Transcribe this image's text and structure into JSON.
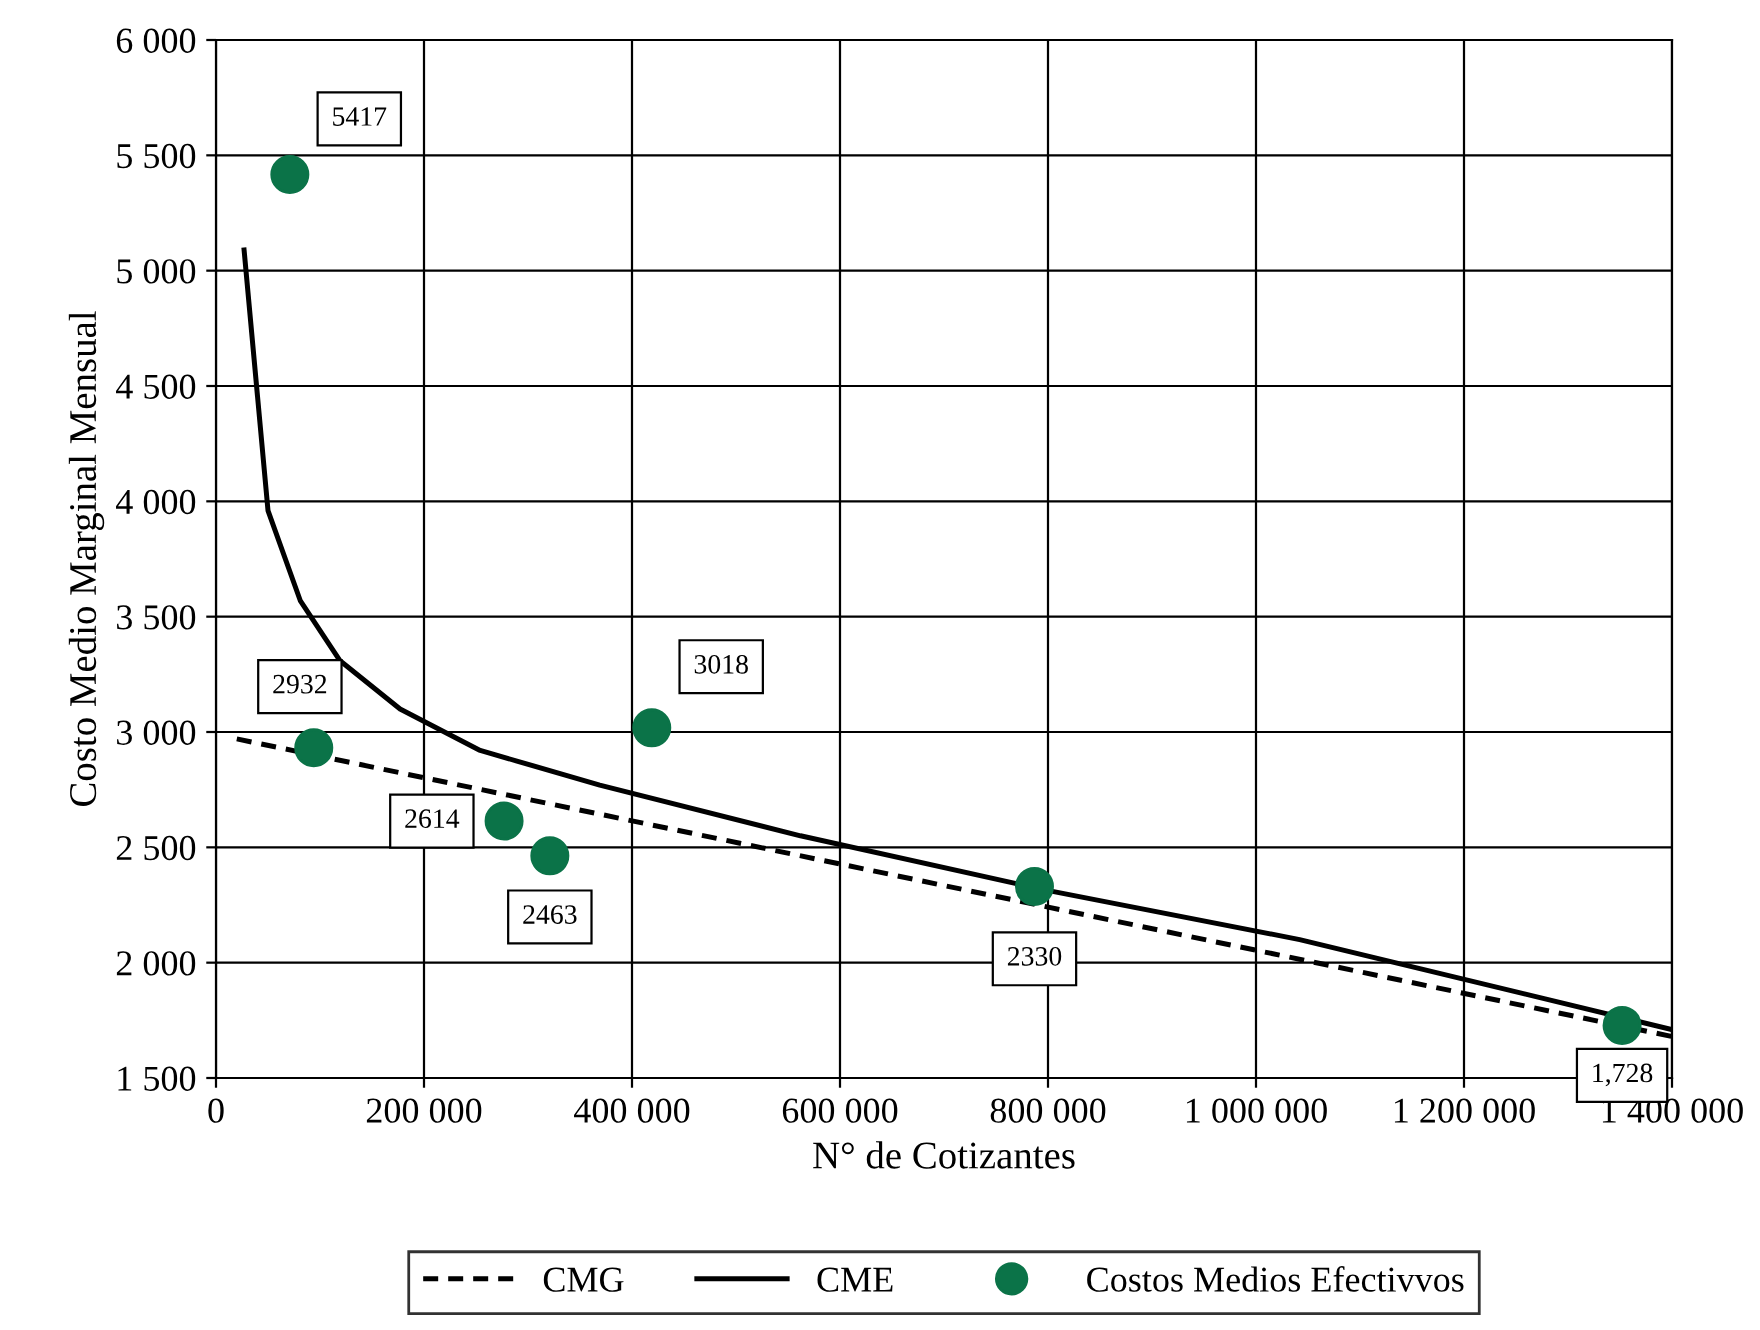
{
  "chart_data": {
    "type": "line",
    "xlabel": "N° de Cotizantes",
    "ylabel": "Costo Medio Marginal Mensual",
    "xlim": [
      0,
      1400000
    ],
    "ylim": [
      1500,
      6000
    ],
    "xticks": [
      0,
      {
        "value": 200000,
        "label": "200 000"
      },
      {
        "value": 400000,
        "label": "400 000"
      },
      {
        "value": 600000,
        "label": "600 000"
      },
      {
        "value": 800000,
        "label": "800 000"
      },
      {
        "value": 1000000,
        "label": "1 000 000"
      },
      {
        "value": 1200000,
        "label": "1 200 000"
      },
      {
        "value": 1400000,
        "label": "1 400 000"
      }
    ],
    "yticks": [
      {
        "value": 1500,
        "label": "1 500"
      },
      {
        "value": 2000,
        "label": "2 000"
      },
      {
        "value": 2500,
        "label": "2 500"
      },
      {
        "value": 3000,
        "label": "3 000"
      },
      {
        "value": 3500,
        "label": "3 500"
      },
      {
        "value": 4000,
        "label": "4 000"
      },
      {
        "value": 4500,
        "label": "4 500"
      },
      {
        "value": 5000,
        "label": "5 000"
      },
      {
        "value": 5500,
        "label": "5 500"
      },
      {
        "value": 6000,
        "label": "6 000"
      }
    ],
    "grid": true,
    "legend": "bottom",
    "series": [
      {
        "name": "CMG",
        "type": "line",
        "line_style": "dashed",
        "color": "#000000",
        "x": [
          20000,
          1400000
        ],
        "values": [
          2970,
          1680
        ]
      },
      {
        "name": "CME",
        "type": "line",
        "line_style": "solid",
        "color": "#000000",
        "x": [
          27000,
          50000,
          81000,
          119000,
          177000,
          254000,
          369000,
          562000,
          792000,
          1042000,
          1400000
        ],
        "values": [
          5090,
          3960,
          3570,
          3310,
          3100,
          2920,
          2770,
          2550,
          2320,
          2100,
          1710
        ]
      },
      {
        "name": "Costos Medios Efectivvos",
        "type": "scatter",
        "marker": "circle",
        "color": "#0b7348",
        "x": [
          71000,
          94000,
          277000,
          321000,
          419000,
          787000,
          1352000
        ],
        "values": [
          5417,
          2932,
          2614,
          2463,
          3018,
          2330,
          1728
        ],
        "value_labels": [
          "5417",
          "2932",
          "2614",
          "2463",
          "3018",
          "2330",
          "1,728"
        ]
      }
    ]
  }
}
